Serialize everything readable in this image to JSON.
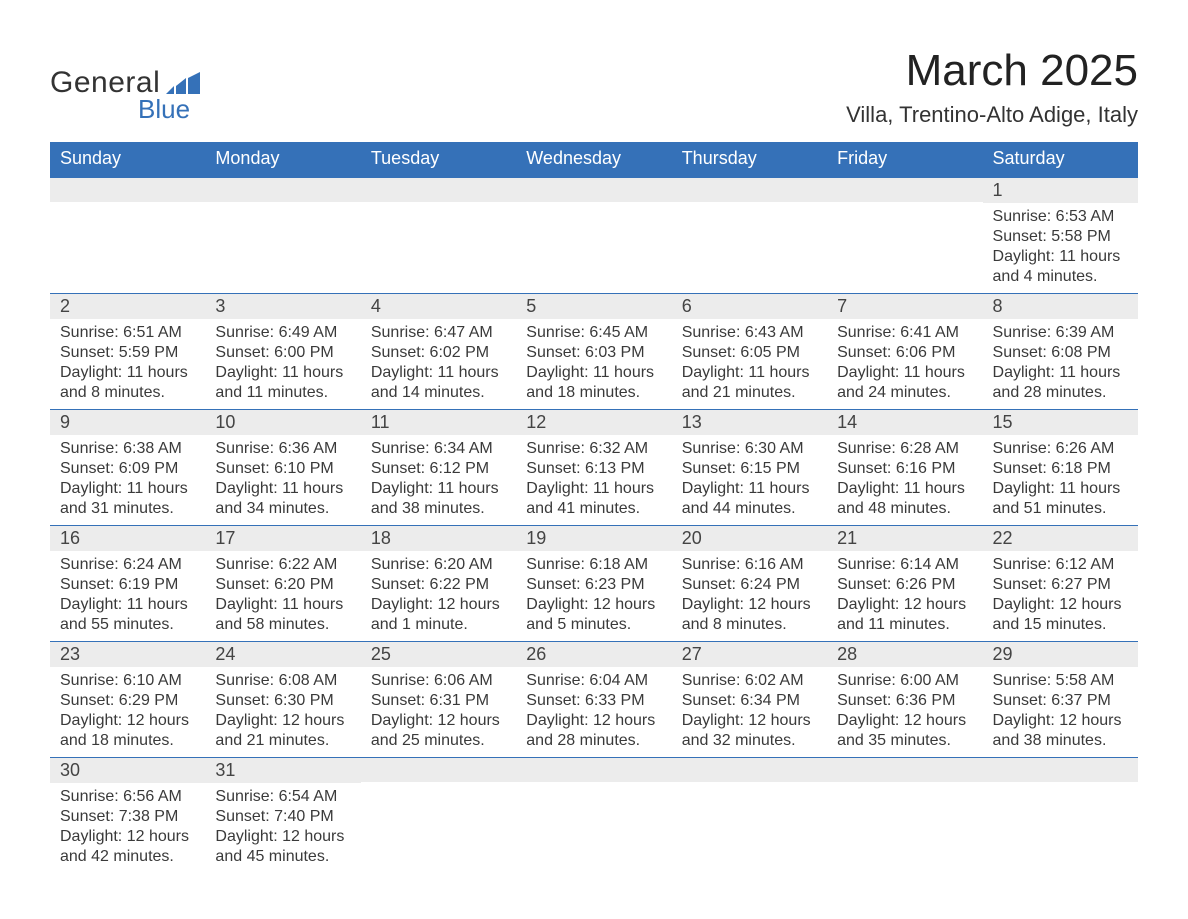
{
  "logo": {
    "text_top": "General",
    "text_bottom": "Blue",
    "chart_color": "#3571b8"
  },
  "header": {
    "month_title": "March 2025",
    "location": "Villa, Trentino-Alto Adige, Italy"
  },
  "colors": {
    "header_bg": "#3571b8",
    "header_text": "#ffffff",
    "daynum_bg": "#ececec",
    "row_divider": "#3571b8",
    "body_text": "#3a3a3a"
  },
  "calendar": {
    "columns": [
      "Sunday",
      "Monday",
      "Tuesday",
      "Wednesday",
      "Thursday",
      "Friday",
      "Saturday"
    ],
    "weeks": [
      [
        null,
        null,
        null,
        null,
        null,
        null,
        {
          "day": "1",
          "sunrise": "Sunrise: 6:53 AM",
          "sunset": "Sunset: 5:58 PM",
          "daylight1": "Daylight: 11 hours",
          "daylight2": "and 4 minutes."
        }
      ],
      [
        {
          "day": "2",
          "sunrise": "Sunrise: 6:51 AM",
          "sunset": "Sunset: 5:59 PM",
          "daylight1": "Daylight: 11 hours",
          "daylight2": "and 8 minutes."
        },
        {
          "day": "3",
          "sunrise": "Sunrise: 6:49 AM",
          "sunset": "Sunset: 6:00 PM",
          "daylight1": "Daylight: 11 hours",
          "daylight2": "and 11 minutes."
        },
        {
          "day": "4",
          "sunrise": "Sunrise: 6:47 AM",
          "sunset": "Sunset: 6:02 PM",
          "daylight1": "Daylight: 11 hours",
          "daylight2": "and 14 minutes."
        },
        {
          "day": "5",
          "sunrise": "Sunrise: 6:45 AM",
          "sunset": "Sunset: 6:03 PM",
          "daylight1": "Daylight: 11 hours",
          "daylight2": "and 18 minutes."
        },
        {
          "day": "6",
          "sunrise": "Sunrise: 6:43 AM",
          "sunset": "Sunset: 6:05 PM",
          "daylight1": "Daylight: 11 hours",
          "daylight2": "and 21 minutes."
        },
        {
          "day": "7",
          "sunrise": "Sunrise: 6:41 AM",
          "sunset": "Sunset: 6:06 PM",
          "daylight1": "Daylight: 11 hours",
          "daylight2": "and 24 minutes."
        },
        {
          "day": "8",
          "sunrise": "Sunrise: 6:39 AM",
          "sunset": "Sunset: 6:08 PM",
          "daylight1": "Daylight: 11 hours",
          "daylight2": "and 28 minutes."
        }
      ],
      [
        {
          "day": "9",
          "sunrise": "Sunrise: 6:38 AM",
          "sunset": "Sunset: 6:09 PM",
          "daylight1": "Daylight: 11 hours",
          "daylight2": "and 31 minutes."
        },
        {
          "day": "10",
          "sunrise": "Sunrise: 6:36 AM",
          "sunset": "Sunset: 6:10 PM",
          "daylight1": "Daylight: 11 hours",
          "daylight2": "and 34 minutes."
        },
        {
          "day": "11",
          "sunrise": "Sunrise: 6:34 AM",
          "sunset": "Sunset: 6:12 PM",
          "daylight1": "Daylight: 11 hours",
          "daylight2": "and 38 minutes."
        },
        {
          "day": "12",
          "sunrise": "Sunrise: 6:32 AM",
          "sunset": "Sunset: 6:13 PM",
          "daylight1": "Daylight: 11 hours",
          "daylight2": "and 41 minutes."
        },
        {
          "day": "13",
          "sunrise": "Sunrise: 6:30 AM",
          "sunset": "Sunset: 6:15 PM",
          "daylight1": "Daylight: 11 hours",
          "daylight2": "and 44 minutes."
        },
        {
          "day": "14",
          "sunrise": "Sunrise: 6:28 AM",
          "sunset": "Sunset: 6:16 PM",
          "daylight1": "Daylight: 11 hours",
          "daylight2": "and 48 minutes."
        },
        {
          "day": "15",
          "sunrise": "Sunrise: 6:26 AM",
          "sunset": "Sunset: 6:18 PM",
          "daylight1": "Daylight: 11 hours",
          "daylight2": "and 51 minutes."
        }
      ],
      [
        {
          "day": "16",
          "sunrise": "Sunrise: 6:24 AM",
          "sunset": "Sunset: 6:19 PM",
          "daylight1": "Daylight: 11 hours",
          "daylight2": "and 55 minutes."
        },
        {
          "day": "17",
          "sunrise": "Sunrise: 6:22 AM",
          "sunset": "Sunset: 6:20 PM",
          "daylight1": "Daylight: 11 hours",
          "daylight2": "and 58 minutes."
        },
        {
          "day": "18",
          "sunrise": "Sunrise: 6:20 AM",
          "sunset": "Sunset: 6:22 PM",
          "daylight1": "Daylight: 12 hours",
          "daylight2": "and 1 minute."
        },
        {
          "day": "19",
          "sunrise": "Sunrise: 6:18 AM",
          "sunset": "Sunset: 6:23 PM",
          "daylight1": "Daylight: 12 hours",
          "daylight2": "and 5 minutes."
        },
        {
          "day": "20",
          "sunrise": "Sunrise: 6:16 AM",
          "sunset": "Sunset: 6:24 PM",
          "daylight1": "Daylight: 12 hours",
          "daylight2": "and 8 minutes."
        },
        {
          "day": "21",
          "sunrise": "Sunrise: 6:14 AM",
          "sunset": "Sunset: 6:26 PM",
          "daylight1": "Daylight: 12 hours",
          "daylight2": "and 11 minutes."
        },
        {
          "day": "22",
          "sunrise": "Sunrise: 6:12 AM",
          "sunset": "Sunset: 6:27 PM",
          "daylight1": "Daylight: 12 hours",
          "daylight2": "and 15 minutes."
        }
      ],
      [
        {
          "day": "23",
          "sunrise": "Sunrise: 6:10 AM",
          "sunset": "Sunset: 6:29 PM",
          "daylight1": "Daylight: 12 hours",
          "daylight2": "and 18 minutes."
        },
        {
          "day": "24",
          "sunrise": "Sunrise: 6:08 AM",
          "sunset": "Sunset: 6:30 PM",
          "daylight1": "Daylight: 12 hours",
          "daylight2": "and 21 minutes."
        },
        {
          "day": "25",
          "sunrise": "Sunrise: 6:06 AM",
          "sunset": "Sunset: 6:31 PM",
          "daylight1": "Daylight: 12 hours",
          "daylight2": "and 25 minutes."
        },
        {
          "day": "26",
          "sunrise": "Sunrise: 6:04 AM",
          "sunset": "Sunset: 6:33 PM",
          "daylight1": "Daylight: 12 hours",
          "daylight2": "and 28 minutes."
        },
        {
          "day": "27",
          "sunrise": "Sunrise: 6:02 AM",
          "sunset": "Sunset: 6:34 PM",
          "daylight1": "Daylight: 12 hours",
          "daylight2": "and 32 minutes."
        },
        {
          "day": "28",
          "sunrise": "Sunrise: 6:00 AM",
          "sunset": "Sunset: 6:36 PM",
          "daylight1": "Daylight: 12 hours",
          "daylight2": "and 35 minutes."
        },
        {
          "day": "29",
          "sunrise": "Sunrise: 5:58 AM",
          "sunset": "Sunset: 6:37 PM",
          "daylight1": "Daylight: 12 hours",
          "daylight2": "and 38 minutes."
        }
      ],
      [
        {
          "day": "30",
          "sunrise": "Sunrise: 6:56 AM",
          "sunset": "Sunset: 7:38 PM",
          "daylight1": "Daylight: 12 hours",
          "daylight2": "and 42 minutes."
        },
        {
          "day": "31",
          "sunrise": "Sunrise: 6:54 AM",
          "sunset": "Sunset: 7:40 PM",
          "daylight1": "Daylight: 12 hours",
          "daylight2": "and 45 minutes."
        },
        null,
        null,
        null,
        null,
        null
      ]
    ]
  }
}
